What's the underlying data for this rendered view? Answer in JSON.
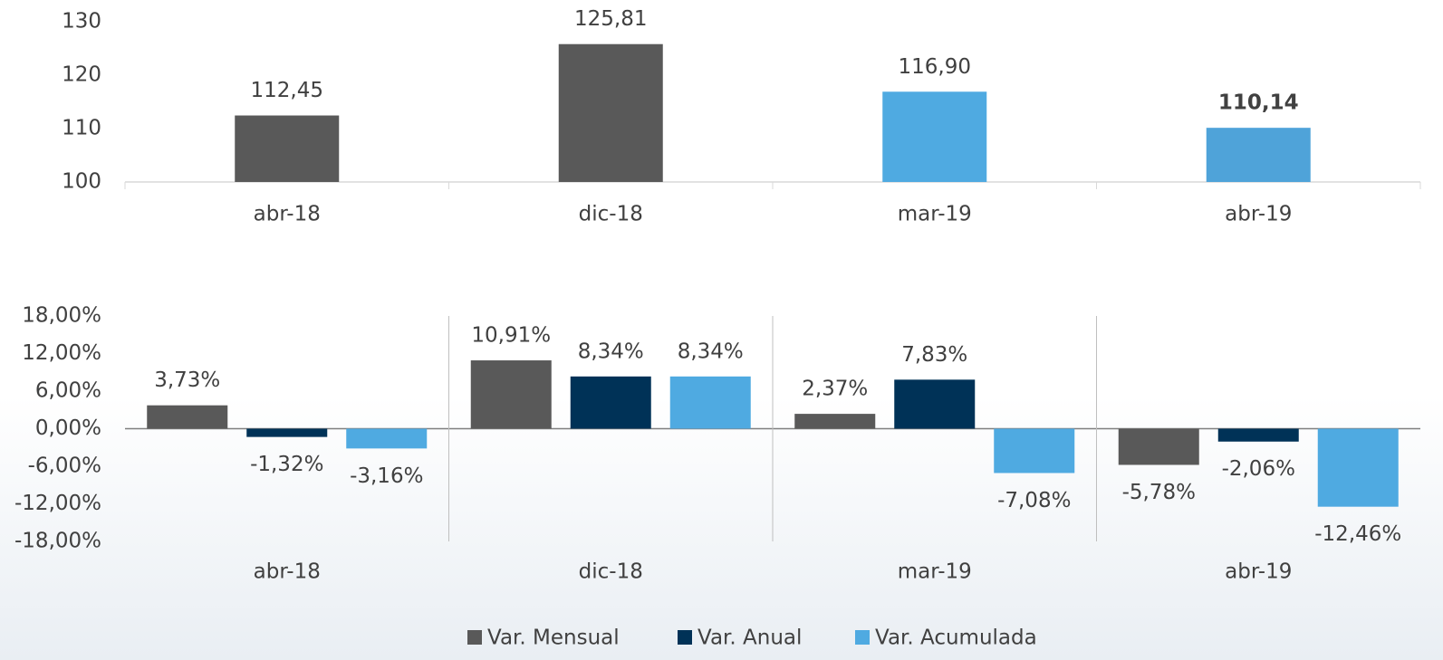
{
  "chart_data": [
    {
      "type": "bar",
      "categories": [
        "abr-18",
        "dic-18",
        "mar-19",
        "abr-19"
      ],
      "values": [
        112.45,
        125.81,
        116.9,
        110.14
      ],
      "value_labels": [
        "112,45",
        "125,81",
        "116,90",
        "110,14"
      ],
      "value_label_bold": [
        false,
        false,
        false,
        true
      ],
      "colors": [
        "#595959",
        "#595959",
        "#4faae1",
        "#4fa3d9"
      ],
      "ylim": [
        100,
        130
      ],
      "yticks": [
        100,
        110,
        120,
        130
      ]
    },
    {
      "type": "grouped_bar",
      "categories": [
        "abr-18",
        "dic-18",
        "mar-19",
        "abr-19"
      ],
      "series": [
        {
          "name": "Var. Mensual",
          "color": "#595959",
          "values": [
            3.73,
            10.91,
            2.37,
            -5.78
          ],
          "value_labels": [
            "3,73%",
            "10,91%",
            "2,37%",
            "-5,78%"
          ]
        },
        {
          "name": "Var. Anual",
          "color": "#003257",
          "values": [
            -1.32,
            8.34,
            7.83,
            -2.06
          ],
          "value_labels": [
            "-1,32%",
            "8,34%",
            "7,83%",
            "-2,06%"
          ]
        },
        {
          "name": "Var. Acumulada",
          "color": "#4faae1",
          "values": [
            -3.16,
            8.34,
            -7.08,
            -12.46
          ],
          "value_labels": [
            "-3,16%",
            "8,34%",
            "-7,08%",
            "-12,46%"
          ]
        }
      ],
      "ylim": [
        -18,
        18
      ],
      "yticks": [
        {
          "value": -18,
          "label": "-18,00%"
        },
        {
          "value": -12,
          "label": "-12,00%"
        },
        {
          "value": -6,
          "label": "-6,00%"
        },
        {
          "value": 0,
          "label": "0,00%"
        },
        {
          "value": 6,
          "label": "6,00%"
        },
        {
          "value": 12,
          "label": "12,00%"
        },
        {
          "value": 18,
          "label": "18,00%"
        }
      ],
      "legend": "bottom"
    }
  ]
}
